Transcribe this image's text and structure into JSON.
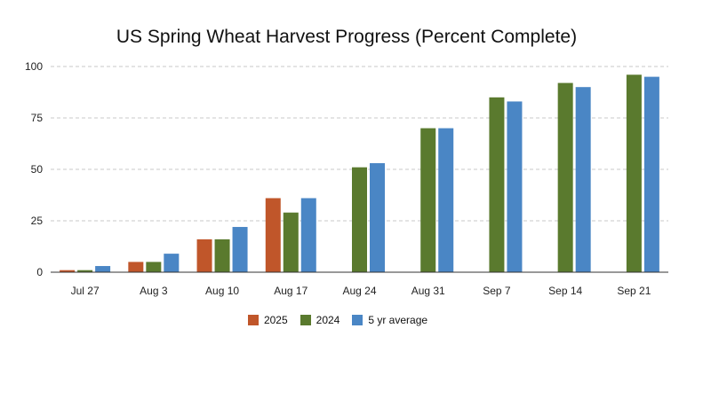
{
  "chart_data": {
    "type": "bar",
    "title": "US Spring Wheat Harvest Progress (Percent Complete)",
    "xlabel": "",
    "ylabel": "",
    "ylim": [
      0,
      100
    ],
    "yticks": [
      "0",
      "25",
      "50",
      "75",
      "100"
    ],
    "grid": true,
    "legend_position": "bottom",
    "categories": [
      "Jul 27",
      "Aug 3",
      "Aug 10",
      "Aug 17",
      "Aug 24",
      "Aug 31",
      "Sep 7",
      "Sep 14",
      "Sep 21"
    ],
    "series": [
      {
        "name": "2025",
        "color": "#c0562a",
        "values": [
          1,
          5,
          16,
          36,
          null,
          null,
          null,
          null,
          null
        ]
      },
      {
        "name": "2024",
        "color": "#5a7a2e",
        "values": [
          1,
          5,
          16,
          29,
          51,
          70,
          85,
          92,
          96
        ]
      },
      {
        "name": "5 yr average",
        "color": "#4a86c5",
        "values": [
          3,
          9,
          22,
          36,
          53,
          70,
          83,
          90,
          95
        ]
      }
    ]
  }
}
